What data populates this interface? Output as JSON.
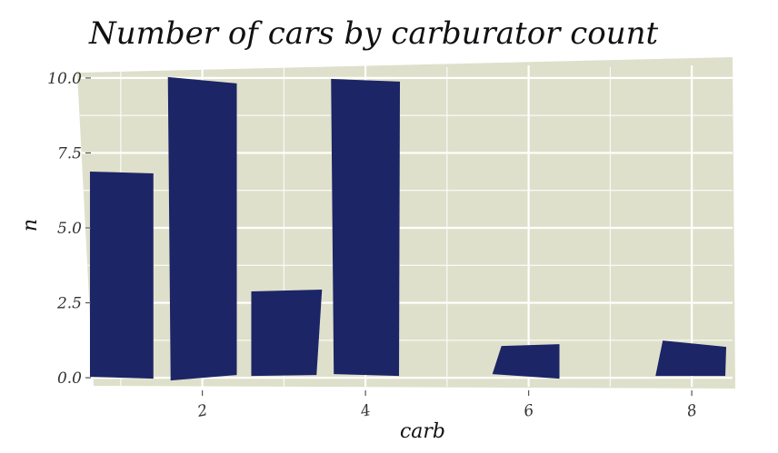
{
  "chart_data": {
    "type": "bar",
    "title": "Number of cars by carburator count",
    "xlabel": "carb",
    "ylabel": "n",
    "categories": [
      1,
      2,
      3,
      4,
      6,
      8
    ],
    "values": [
      7,
      10,
      3,
      10,
      1,
      1
    ],
    "xlim": [
      0.5,
      8.5
    ],
    "ylim": [
      -0.3,
      10.3
    ],
    "xticks": [
      2,
      4,
      6,
      8
    ],
    "xtick_labels": [
      "2",
      "4",
      "6",
      "8"
    ],
    "yticks": [
      0,
      2.5,
      5,
      7.5,
      10
    ],
    "ytick_labels": [
      "0.0",
      "2.5",
      "5.0",
      "7.5",
      "10.0"
    ],
    "grid": true,
    "colors": {
      "bar": "#1c2566",
      "panel": "#dfe0cb",
      "grid": "#ffffff"
    }
  }
}
